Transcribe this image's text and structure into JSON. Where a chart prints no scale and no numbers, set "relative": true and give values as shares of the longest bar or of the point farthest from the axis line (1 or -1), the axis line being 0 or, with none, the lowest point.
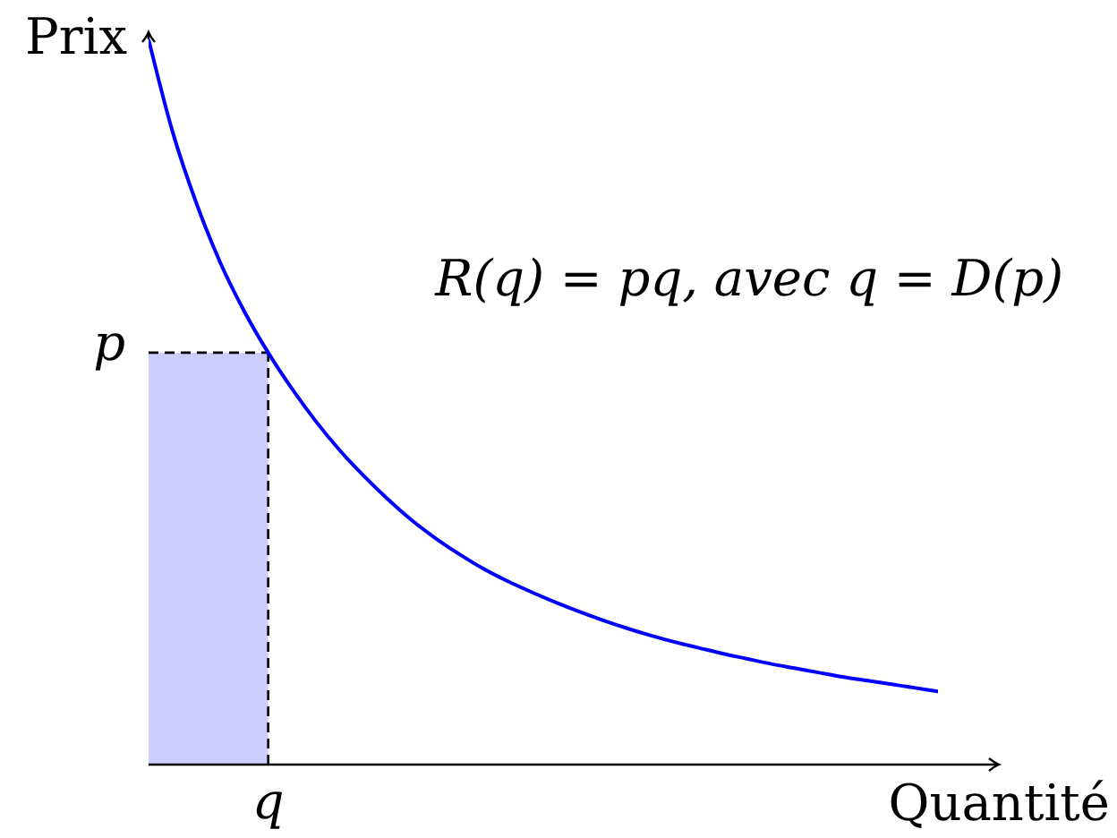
{
  "chart_data": {
    "type": "line",
    "relative": true,
    "xlabel": "Quantité",
    "ylabel": "Prix",
    "categories": [
      null,
      null,
      null,
      null,
      null,
      null,
      null,
      null,
      null,
      null,
      null,
      null,
      null,
      null,
      null,
      null,
      null,
      null,
      null,
      null,
      null,
      null,
      null,
      null,
      null,
      null,
      null,
      null,
      null,
      null,
      null,
      null,
      null,
      null
    ],
    "series": [
      {
        "type": "area",
        "color": "#ccccff",
        "line_style": "dashed",
        "values": [
          0.568,
          0.568,
          0.568,
          0.568,
          0.568,
          0.568,
          null,
          null,
          null,
          null,
          null,
          null,
          null,
          null,
          null,
          null,
          null,
          null,
          null,
          null,
          null,
          null,
          null,
          null,
          null,
          null,
          null,
          null,
          null,
          null,
          null,
          null,
          null,
          null
        ]
      },
      {
        "color": "#0000ff",
        "values": [
          1,
          0.873,
          0.774,
          0.692,
          0.625,
          0.568,
          0.518,
          0.473,
          0.433,
          0.398,
          0.366,
          0.337,
          0.312,
          0.29,
          0.27,
          0.253,
          0.238,
          0.224,
          0.211,
          0.199,
          0.188,
          0.178,
          0.169,
          0.161,
          0.153,
          0.146,
          0.139,
          0.133,
          0.127,
          0.121,
          0.116,
          0.111,
          0.106,
          0.101
        ]
      }
    ],
    "annotations": [
      "R(q) = pq, avec q = D(p)",
      "q",
      "p"
    ]
  }
}
